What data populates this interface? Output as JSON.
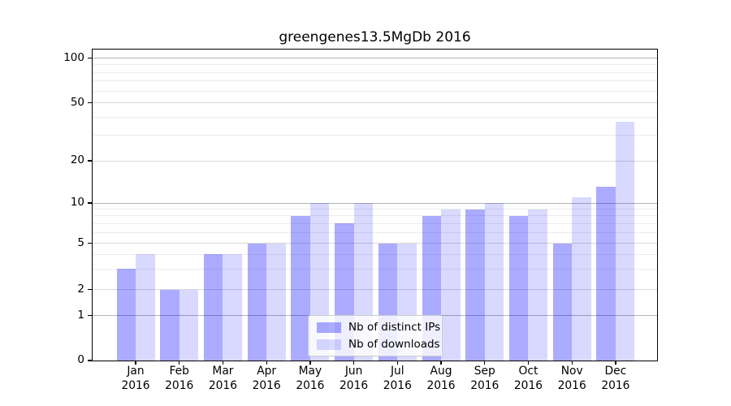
{
  "title": "greengenes13.5MgDb 2016",
  "chart_data": {
    "type": "bar",
    "title": "greengenes13.5MgDb 2016",
    "categories": [
      "Jan 2016",
      "Feb 2016",
      "Mar 2016",
      "Apr 2016",
      "May 2016",
      "Jun 2016",
      "Jul 2016",
      "Aug 2016",
      "Sep 2016",
      "Oct 2016",
      "Nov 2016",
      "Dec 2016"
    ],
    "series": [
      {
        "name": "Nb of distinct IPs",
        "color": "rgba(0,0,255,0.33)",
        "color_on_white_hex": "#ababff",
        "values": [
          3,
          2,
          4,
          5,
          8,
          7,
          5,
          8,
          9,
          8,
          5,
          13
        ]
      },
      {
        "name": "Nb of downloads",
        "color": "rgba(0,0,255,0.15)",
        "color_on_white_hex": "#dcdcff",
        "values": [
          4,
          2,
          4,
          5,
          10,
          10,
          5,
          9,
          10,
          9,
          11,
          37
        ]
      }
    ],
    "xlabel": "",
    "ylabel": "",
    "yaxis": {
      "scale": "log-like with 0 baseline",
      "tick_labels": [
        0,
        1,
        2,
        5,
        10,
        20,
        50,
        100
      ],
      "decade_ticks": [
        1,
        10,
        100
      ],
      "mid_ticks": [
        2,
        5,
        20,
        50
      ],
      "minor_gridlines": [
        3,
        4,
        6,
        7,
        8,
        9,
        30,
        40,
        60,
        70,
        80,
        90
      ],
      "ylim": [
        0,
        115
      ]
    },
    "grid": true,
    "legend_position": "lower center"
  },
  "colors": {
    "spine": "#000000",
    "grid_decade": "#b4b4b4",
    "grid_mid": "#d8d8d8",
    "grid_minor": "#ececec",
    "legend_border": "#cccccc",
    "legend_background": "rgba(255,255,255,0.8)",
    "text": "#000000"
  }
}
